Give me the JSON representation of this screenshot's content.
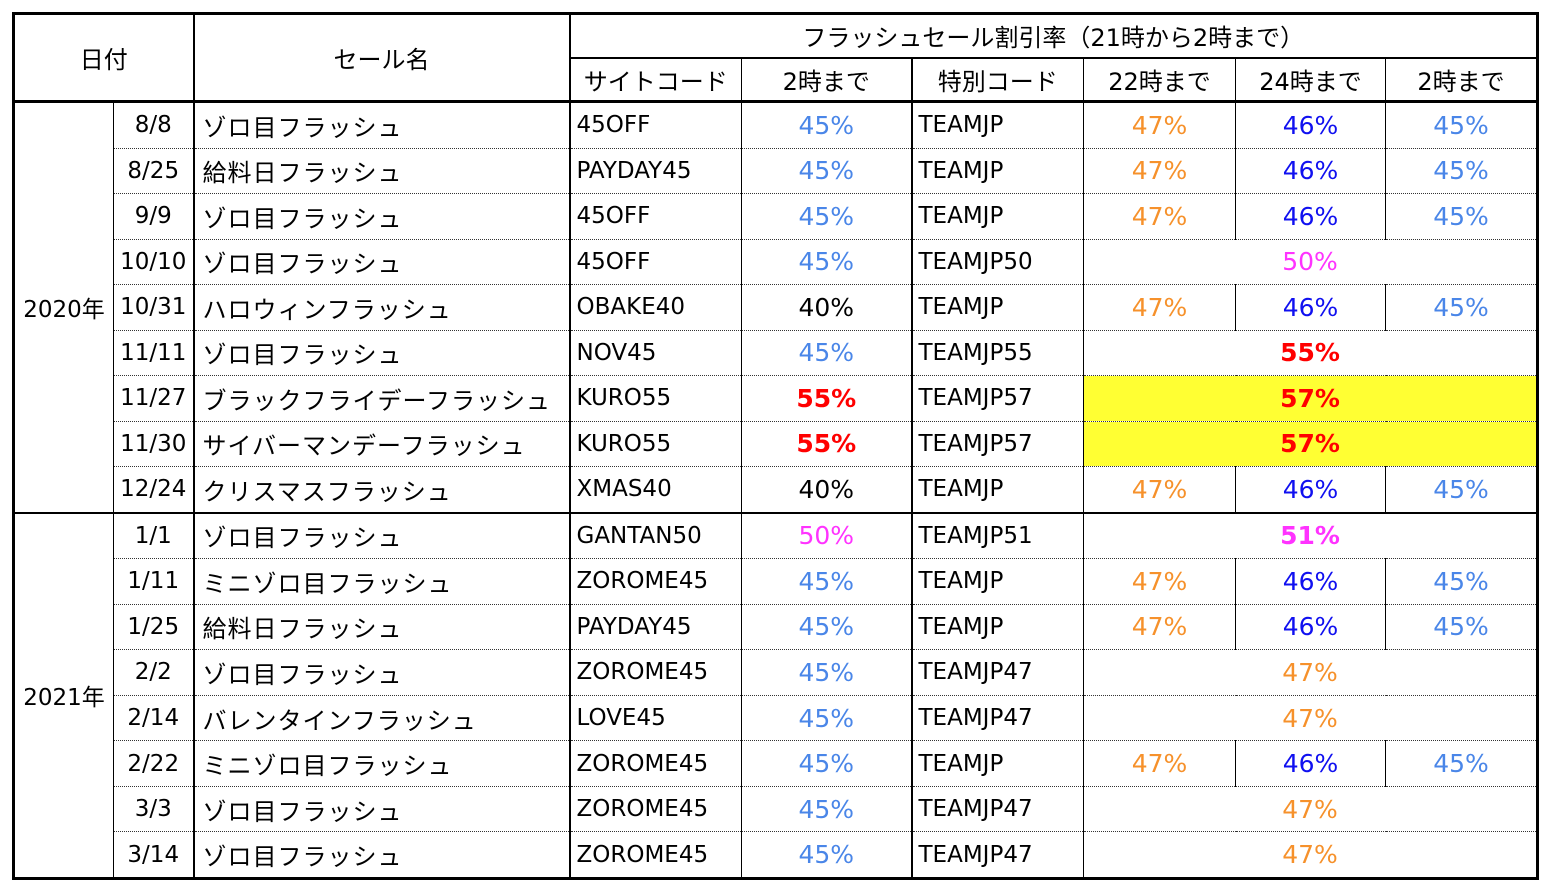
{
  "header": {
    "date": "日付",
    "sale_name": "セール名",
    "group_title": "フラッシュセール割引率（21時から2時まで）",
    "site_code": "サイトコード",
    "site_until": "2時まで",
    "special_code": "特別コード",
    "until_22": "22時まで",
    "until_24": "24時まで",
    "until_2": "2時まで"
  },
  "colors": {
    "blue_light": "#4a86e8",
    "blue_dark": "#1010f0",
    "orange": "#f6912b",
    "magenta": "#ff33ff",
    "red": "#ff0000",
    "black": "#000000",
    "highlight": "#ffff33"
  },
  "groups": [
    {
      "year": "2020年",
      "rows": [
        {
          "date": "8/8",
          "name": "ゾロ目フラッシュ",
          "site_code": "45OFF",
          "site_pct": "45%",
          "site_color": "#4a86e8",
          "special_code": "TEAMJP",
          "tiers": [
            "47%",
            "46%",
            "45%"
          ]
        },
        {
          "date": "8/25",
          "name": "給料日フラッシュ",
          "site_code": "PAYDAY45",
          "site_pct": "45%",
          "site_color": "#4a86e8",
          "special_code": "TEAMJP",
          "tiers": [
            "47%",
            "46%",
            "45%"
          ]
        },
        {
          "date": "9/9",
          "name": "ゾロ目フラッシュ",
          "site_code": "45OFF",
          "site_pct": "45%",
          "site_color": "#4a86e8",
          "special_code": "TEAMJP",
          "tiers": [
            "47%",
            "46%",
            "45%"
          ]
        },
        {
          "date": "10/10",
          "name": "ゾロ目フラッシュ",
          "site_code": "45OFF",
          "site_pct": "45%",
          "site_color": "#4a86e8",
          "special_code": "TEAMJP50",
          "merged": "50%",
          "merged_color": "#ff33ff"
        },
        {
          "date": "10/31",
          "name": "ハロウィンフラッシュ",
          "site_code": "OBAKE40",
          "site_pct": "40%",
          "site_color": "#000000",
          "special_code": "TEAMJP",
          "tiers": [
            "47%",
            "46%",
            "45%"
          ]
        },
        {
          "date": "11/11",
          "name": "ゾロ目フラッシュ",
          "site_code": "NOV45",
          "site_pct": "45%",
          "site_color": "#4a86e8",
          "special_code": "TEAMJP55",
          "merged": "55%",
          "merged_color": "#ff0000",
          "merged_bold": true
        },
        {
          "date": "11/27",
          "name": "ブラックフライデーフラッシュ",
          "site_code": "KURO55",
          "site_pct": "55%",
          "site_color": "#ff0000",
          "site_bold": true,
          "special_code": "TEAMJP57",
          "merged": "57%",
          "merged_color": "#ff0000",
          "merged_bold": true,
          "highlight": true
        },
        {
          "date": "11/30",
          "name": "サイバーマンデーフラッシュ",
          "site_code": "KURO55",
          "site_pct": "55%",
          "site_color": "#ff0000",
          "site_bold": true,
          "special_code": "TEAMJP57",
          "merged": "57%",
          "merged_color": "#ff0000",
          "merged_bold": true,
          "highlight": true
        },
        {
          "date": "12/24",
          "name": "クリスマスフラッシュ",
          "site_code": "XMAS40",
          "site_pct": "40%",
          "site_color": "#000000",
          "special_code": "TEAMJP",
          "tiers": [
            "47%",
            "46%",
            "45%"
          ]
        }
      ]
    },
    {
      "year": "2021年",
      "rows": [
        {
          "date": "1/1",
          "name": "ゾロ目フラッシュ",
          "site_code": "GANTAN50",
          "site_pct": "50%",
          "site_color": "#ff33ff",
          "special_code": "TEAMJP51",
          "merged": "51%",
          "merged_color": "#ff33ff",
          "merged_bold": true
        },
        {
          "date": "1/11",
          "name": "ミニゾロ目フラッシュ",
          "site_code": "ZOROME45",
          "site_pct": "45%",
          "site_color": "#4a86e8",
          "special_code": "TEAMJP",
          "tiers": [
            "47%",
            "46%",
            "45%"
          ]
        },
        {
          "date": "1/25",
          "name": "給料日フラッシュ",
          "site_code": "PAYDAY45",
          "site_pct": "45%",
          "site_color": "#4a86e8",
          "special_code": "TEAMJP",
          "tiers": [
            "47%",
            "46%",
            "45%"
          ]
        },
        {
          "date": "2/2",
          "name": "ゾロ目フラッシュ",
          "site_code": "ZOROME45",
          "site_pct": "45%",
          "site_color": "#4a86e8",
          "special_code": "TEAMJP47",
          "merged": "47%",
          "merged_color": "#f6912b"
        },
        {
          "date": "2/14",
          "name": "バレンタインフラッシュ",
          "site_code": "LOVE45",
          "site_pct": "45%",
          "site_color": "#4a86e8",
          "special_code": "TEAMJP47",
          "merged": "47%",
          "merged_color": "#f6912b"
        },
        {
          "date": "2/22",
          "name": "ミニゾロ目フラッシュ",
          "site_code": "ZOROME45",
          "site_pct": "45%",
          "site_color": "#4a86e8",
          "special_code": "TEAMJP",
          "tiers": [
            "47%",
            "46%",
            "45%"
          ]
        },
        {
          "date": "3/3",
          "name": "ゾロ目フラッシュ",
          "site_code": "ZOROME45",
          "site_pct": "45%",
          "site_color": "#4a86e8",
          "special_code": "TEAMJP47",
          "merged": "47%",
          "merged_color": "#f6912b"
        },
        {
          "date": "3/14",
          "name": "ゾロ目フラッシュ",
          "site_code": "ZOROME45",
          "site_pct": "45%",
          "site_color": "#4a86e8",
          "special_code": "TEAMJP47",
          "merged": "47%",
          "merged_color": "#f6912b"
        }
      ]
    }
  ],
  "tier_colors": [
    "#f6912b",
    "#1010f0",
    "#4a86e8"
  ]
}
